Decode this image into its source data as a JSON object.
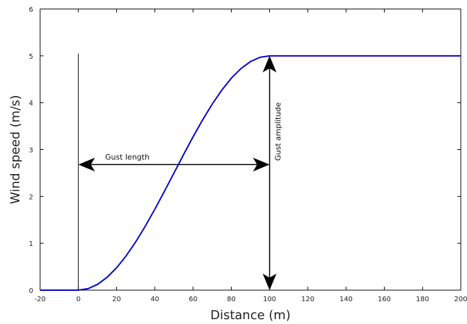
{
  "chart_data": {
    "type": "line",
    "title": "",
    "xlabel": "Distance (m)",
    "ylabel": "Wind speed (m/s)",
    "xlim": [
      -20,
      200
    ],
    "ylim": [
      0,
      6
    ],
    "xticks": [
      -20,
      0,
      20,
      40,
      60,
      80,
      100,
      120,
      140,
      160,
      180,
      200
    ],
    "yticks": [
      0,
      1,
      2,
      3,
      4,
      5,
      6
    ],
    "xtick_labels": [
      "-20",
      "0",
      "20",
      "40",
      "60",
      "80",
      "100",
      "120",
      "140",
      "160",
      "180",
      "200"
    ],
    "ytick_labels": [
      "0",
      "1",
      "2",
      "3",
      "4",
      "5",
      "6"
    ],
    "grid": false,
    "series": [
      {
        "color": "#0000cc",
        "x": [
          -20,
          -10,
          0,
          5,
          10,
          15,
          20,
          25,
          30,
          35,
          40,
          45,
          50,
          55,
          60,
          65,
          70,
          75,
          80,
          85,
          90,
          95,
          100,
          120,
          140,
          160,
          180,
          200
        ],
        "y": [
          0,
          0,
          0,
          0.0308,
          0.1224,
          0.273,
          0.4775,
          0.7322,
          1.0305,
          1.365,
          1.7275,
          2.109,
          2.5,
          2.891,
          3.2725,
          3.635,
          3.9695,
          4.2678,
          4.5225,
          4.727,
          4.8776,
          4.9692,
          5,
          5,
          5,
          5,
          5,
          5
        ]
      }
    ],
    "annotations": {
      "gust_length_label": "Gust length",
      "gust_amplitude_label": "Gust amplitude",
      "gust_length_range": [
        0,
        100
      ],
      "gust_length_y": 2.68,
      "gust_amplitude_x": 100,
      "gust_amplitude_range": [
        0,
        5
      ],
      "start_marker_x": 0,
      "start_marker_top": 5.05
    }
  }
}
